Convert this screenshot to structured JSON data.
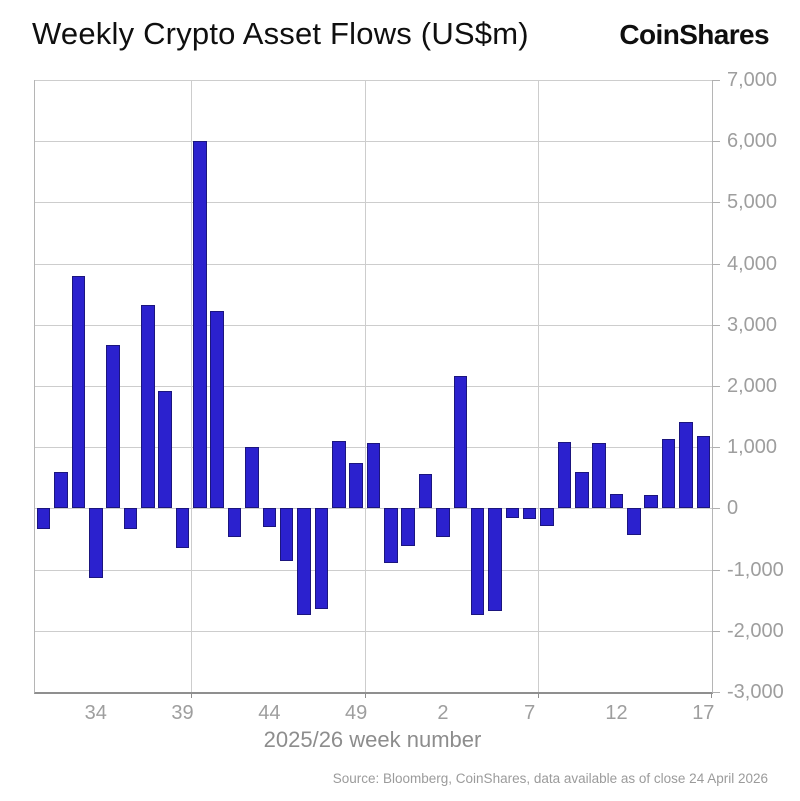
{
  "header": {
    "title": "Weekly Crypto Asset Flows (US$m)",
    "logo": "CoinShares"
  },
  "chart_data": {
    "type": "bar",
    "title": "Weekly Crypto Asset Flows (US$m)",
    "xlabel": "2025/26 week number",
    "ylabel": "",
    "ylim": [
      -3000,
      7000
    ],
    "ytick_interval": 1000,
    "ytick_labels": [
      "7,000",
      "6,000",
      "5,000",
      "4,000",
      "3,000",
      "2,000",
      "1,000",
      "0",
      "-1,000",
      "-2,000",
      "-3,000"
    ],
    "x_tick_labels": [
      "34",
      "39",
      "44",
      "49",
      "2",
      "7",
      "12",
      "17"
    ],
    "vgrid_after_weeks": [
      "39",
      "49",
      "7",
      "17"
    ],
    "grid": true,
    "legend_position": "none",
    "bar_color": "#2b21ce",
    "bar_border_color": "#1b157e",
    "categories": [
      "31",
      "32",
      "33",
      "34",
      "35",
      "36",
      "37",
      "38",
      "39",
      "40",
      "41",
      "42",
      "43",
      "44",
      "45",
      "46",
      "47",
      "48",
      "49",
      "50",
      "51",
      "52",
      "1",
      "2",
      "3",
      "4",
      "5",
      "6",
      "7",
      "8",
      "9",
      "10",
      "11",
      "12",
      "13",
      "14",
      "15",
      "16",
      "17"
    ],
    "values": [
      -330,
      600,
      3790,
      -1140,
      2670,
      -330,
      3330,
      1920,
      -650,
      6000,
      3230,
      -460,
      1010,
      -300,
      -860,
      -1740,
      -1650,
      1100,
      750,
      1070,
      -900,
      -620,
      560,
      -460,
      2160,
      -1740,
      -1670,
      -160,
      -180,
      -290,
      1080,
      600,
      1070,
      230,
      -430,
      220,
      1130,
      1410,
      1190
    ]
  },
  "footer": {
    "source": "Source: Bloomberg, CoinShares, data available as of close 24 April 2026"
  }
}
